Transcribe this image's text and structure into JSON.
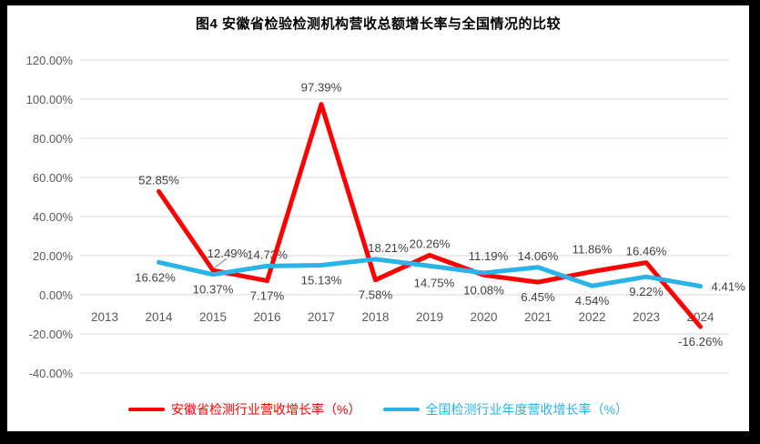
{
  "frame": {
    "border_color": "#000000",
    "canvas_background": "#ffffff"
  },
  "chart_data": {
    "type": "line",
    "title": "图4 安徽省检验检测机构营收总额增长率与全国情况的比较",
    "categories": [
      "2013",
      "2014",
      "2015",
      "2016",
      "2017",
      "2018",
      "2019",
      "2020",
      "2021",
      "2022",
      "2023",
      "2024"
    ],
    "xlabel": "",
    "ylabel": "",
    "ylim": [
      -40,
      120
    ],
    "y_tick_step": 20,
    "y_tick_labels": [
      "120.00%",
      "100.00%",
      "80.00%",
      "60.00%",
      "40.00%",
      "20.00%",
      "0.00%",
      "-20.00%",
      "-40.00%"
    ],
    "grid": "horizontal",
    "gridline_color": "#D9D9D9",
    "axis_label_color": "#595959",
    "data_label_color": "#404040",
    "legend_position": "bottom",
    "series": [
      {
        "name": "安徽省检测行业营收增长率（%）",
        "color": "#FF0000",
        "start_category_index": 1,
        "values": [
          52.85,
          12.49,
          7.17,
          97.39,
          7.58,
          20.26,
          10.08,
          6.45,
          11.86,
          16.46,
          -16.26
        ],
        "labels": [
          "52.85%",
          "12.49%",
          "7.17%",
          "97.39%",
          "7.58%",
          "20.26%",
          "10.08%",
          "6.45%",
          "11.86%",
          "16.46%",
          "-16.26%"
        ],
        "label_sides": [
          "above",
          "above",
          "below",
          "above",
          "below",
          "above",
          "below",
          "below",
          "above",
          "above",
          "below"
        ],
        "label_offset_overrides": {
          "1": [
            16,
            -6
          ],
          "3": [
            0,
            -6
          ],
          "8": [
            0,
            -12
          ]
        }
      },
      {
        "name": "全国检测行业年度营收增长率（%）",
        "color": "#29B3E8",
        "start_category_index": 1,
        "values": [
          16.62,
          10.37,
          14.73,
          15.13,
          18.21,
          14.75,
          11.19,
          14.06,
          4.54,
          9.22,
          4.41
        ],
        "labels": [
          "16.62%",
          "10.37%",
          "14.73%",
          "15.13%",
          "18.21%",
          "14.75%",
          "11.19%",
          "14.06%",
          "4.54%",
          "9.22%",
          "4.41%"
        ],
        "label_sides": [
          "below",
          "below",
          "above",
          "below",
          "above",
          "above",
          "above",
          "above",
          "below",
          "below",
          "right"
        ],
        "label_offset_overrides": {
          "0": [
            -4,
            0
          ],
          "4": [
            14,
            0
          ],
          "5": [
            5,
            31
          ],
          "6": [
            5,
            -6
          ]
        }
      }
    ],
    "annotations": [
      {
        "type": "leader-line",
        "series": 0,
        "point": 1,
        "color": "#A6A6A6"
      }
    ]
  }
}
